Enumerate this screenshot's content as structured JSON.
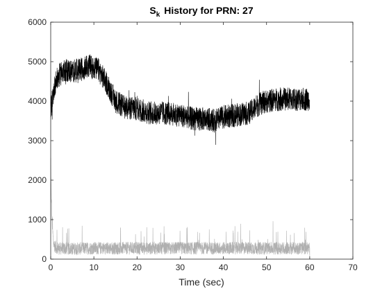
{
  "chart_data": {
    "type": "line",
    "title": "History for PRN: 27",
    "title_symbol": "S",
    "title_subscript": "k",
    "xlabel": "Time (sec)",
    "ylabel": "",
    "xlim": [
      0,
      70
    ],
    "ylim": [
      0,
      6000
    ],
    "xticks": [
      0,
      10,
      20,
      30,
      40,
      50,
      60,
      70
    ],
    "yticks": [
      0,
      1000,
      2000,
      3000,
      4000,
      5000,
      6000
    ],
    "grid": false,
    "legend": "none",
    "series": [
      {
        "color": "#000000",
        "x": [
          0,
          1,
          2,
          3,
          5,
          7,
          9,
          11,
          13,
          15,
          17,
          20,
          23,
          26,
          30,
          33,
          36,
          38,
          40,
          43,
          46,
          48,
          50,
          53,
          56,
          58,
          60
        ],
        "y": [
          3800,
          4450,
          4650,
          4800,
          4750,
          4800,
          4900,
          4800,
          4450,
          4000,
          3850,
          3800,
          3700,
          3700,
          3650,
          3550,
          3550,
          3500,
          3600,
          3650,
          3700,
          3900,
          4000,
          4050,
          4050,
          4050,
          4050
        ],
        "noise": 300
      },
      {
        "color": "#b0b0b0",
        "x": [
          0,
          0.3,
          0.6,
          1,
          2,
          5,
          10,
          20,
          30,
          40,
          50,
          60
        ],
        "y": [
          2200,
          1000,
          400,
          300,
          250,
          250,
          260,
          260,
          260,
          260,
          260,
          260
        ],
        "noise": 200
      }
    ]
  }
}
